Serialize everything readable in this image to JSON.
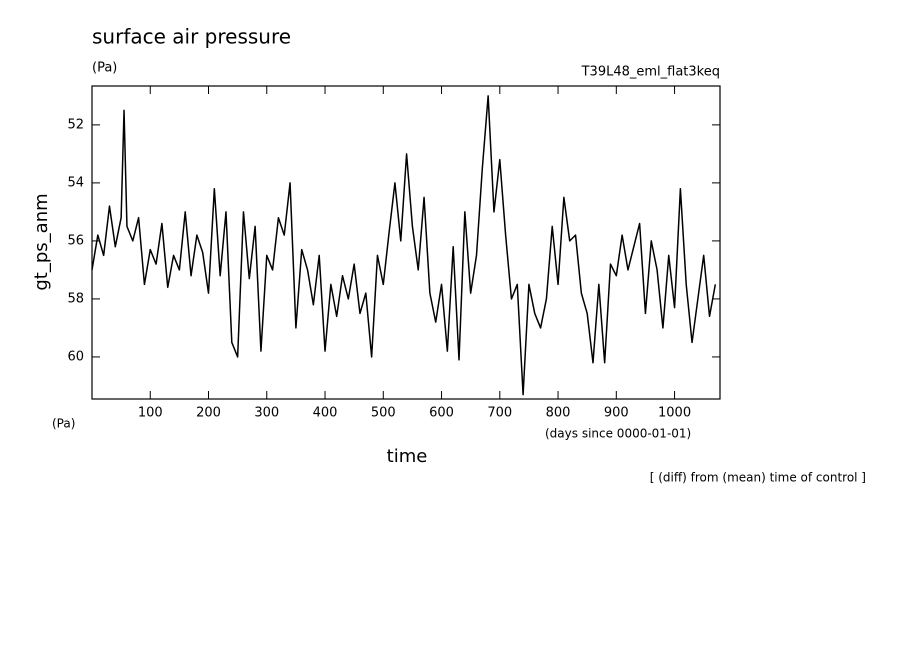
{
  "chart_data": {
    "type": "line",
    "title": "surface air pressure",
    "subtitle": "(Pa)",
    "experiment": "T39L48_eml_flat3keq",
    "ylabel": "gt_ps_anm",
    "yunit": "(Pa)",
    "xunit": "(days since 0000-01-01)",
    "xlabel": "time",
    "note": "[ (diff) from (mean) time of control ]",
    "color": "#000000",
    "xlim": [
      0,
      1078
    ],
    "ylim": [
      61.45,
      50.66
    ],
    "xticks": [
      100,
      200,
      300,
      400,
      500,
      600,
      700,
      800,
      900,
      1000
    ],
    "yticks": [
      52,
      54,
      56,
      58,
      60
    ],
    "x": [
      0,
      10,
      20,
      30,
      40,
      50,
      55,
      60,
      70,
      80,
      90,
      100,
      110,
      120,
      130,
      140,
      150,
      160,
      170,
      180,
      190,
      200,
      210,
      220,
      230,
      240,
      250,
      260,
      270,
      280,
      290,
      300,
      310,
      320,
      330,
      340,
      350,
      360,
      370,
      380,
      390,
      400,
      410,
      420,
      430,
      440,
      450,
      460,
      470,
      480,
      490,
      500,
      510,
      520,
      530,
      540,
      550,
      560,
      570,
      580,
      590,
      600,
      610,
      620,
      630,
      640,
      650,
      660,
      670,
      680,
      690,
      700,
      710,
      720,
      730,
      740,
      750,
      760,
      770,
      780,
      790,
      800,
      810,
      820,
      830,
      840,
      850,
      860,
      870,
      880,
      890,
      900,
      910,
      920,
      930,
      940,
      950,
      960,
      970,
      980,
      990,
      1000,
      1010,
      1020,
      1030,
      1040,
      1050,
      1060,
      1070
    ],
    "values": [
      57.0,
      55.8,
      56.5,
      54.8,
      56.2,
      55.2,
      51.5,
      55.5,
      56.0,
      55.2,
      57.5,
      56.3,
      56.8,
      55.4,
      57.6,
      56.5,
      57.0,
      55.0,
      57.2,
      55.8,
      56.4,
      57.8,
      54.2,
      57.2,
      55.0,
      59.5,
      60.0,
      55.0,
      57.3,
      55.5,
      59.8,
      56.5,
      57.0,
      55.2,
      55.8,
      54.0,
      59.0,
      56.3,
      57.0,
      58.2,
      56.5,
      59.8,
      57.5,
      58.6,
      57.2,
      58.0,
      56.8,
      58.5,
      57.8,
      60.0,
      56.5,
      57.5,
      55.7,
      54.0,
      56.0,
      53.0,
      55.5,
      57.0,
      54.5,
      57.8,
      58.8,
      57.5,
      59.8,
      56.2,
      60.1,
      55.0,
      57.8,
      56.5,
      53.5,
      51.0,
      55.0,
      53.2,
      55.8,
      58.0,
      57.5,
      61.3,
      57.5,
      58.5,
      59.0,
      58.0,
      55.5,
      57.5,
      54.5,
      56.0,
      55.8,
      57.8,
      58.5,
      60.2,
      57.5,
      60.2,
      56.8,
      57.2,
      55.8,
      57.0,
      56.2,
      55.4,
      58.5,
      56.0,
      57.0,
      59.0,
      56.5,
      58.3,
      54.2,
      57.5,
      59.5,
      58.0,
      56.5,
      58.6,
      57.5
    ]
  }
}
